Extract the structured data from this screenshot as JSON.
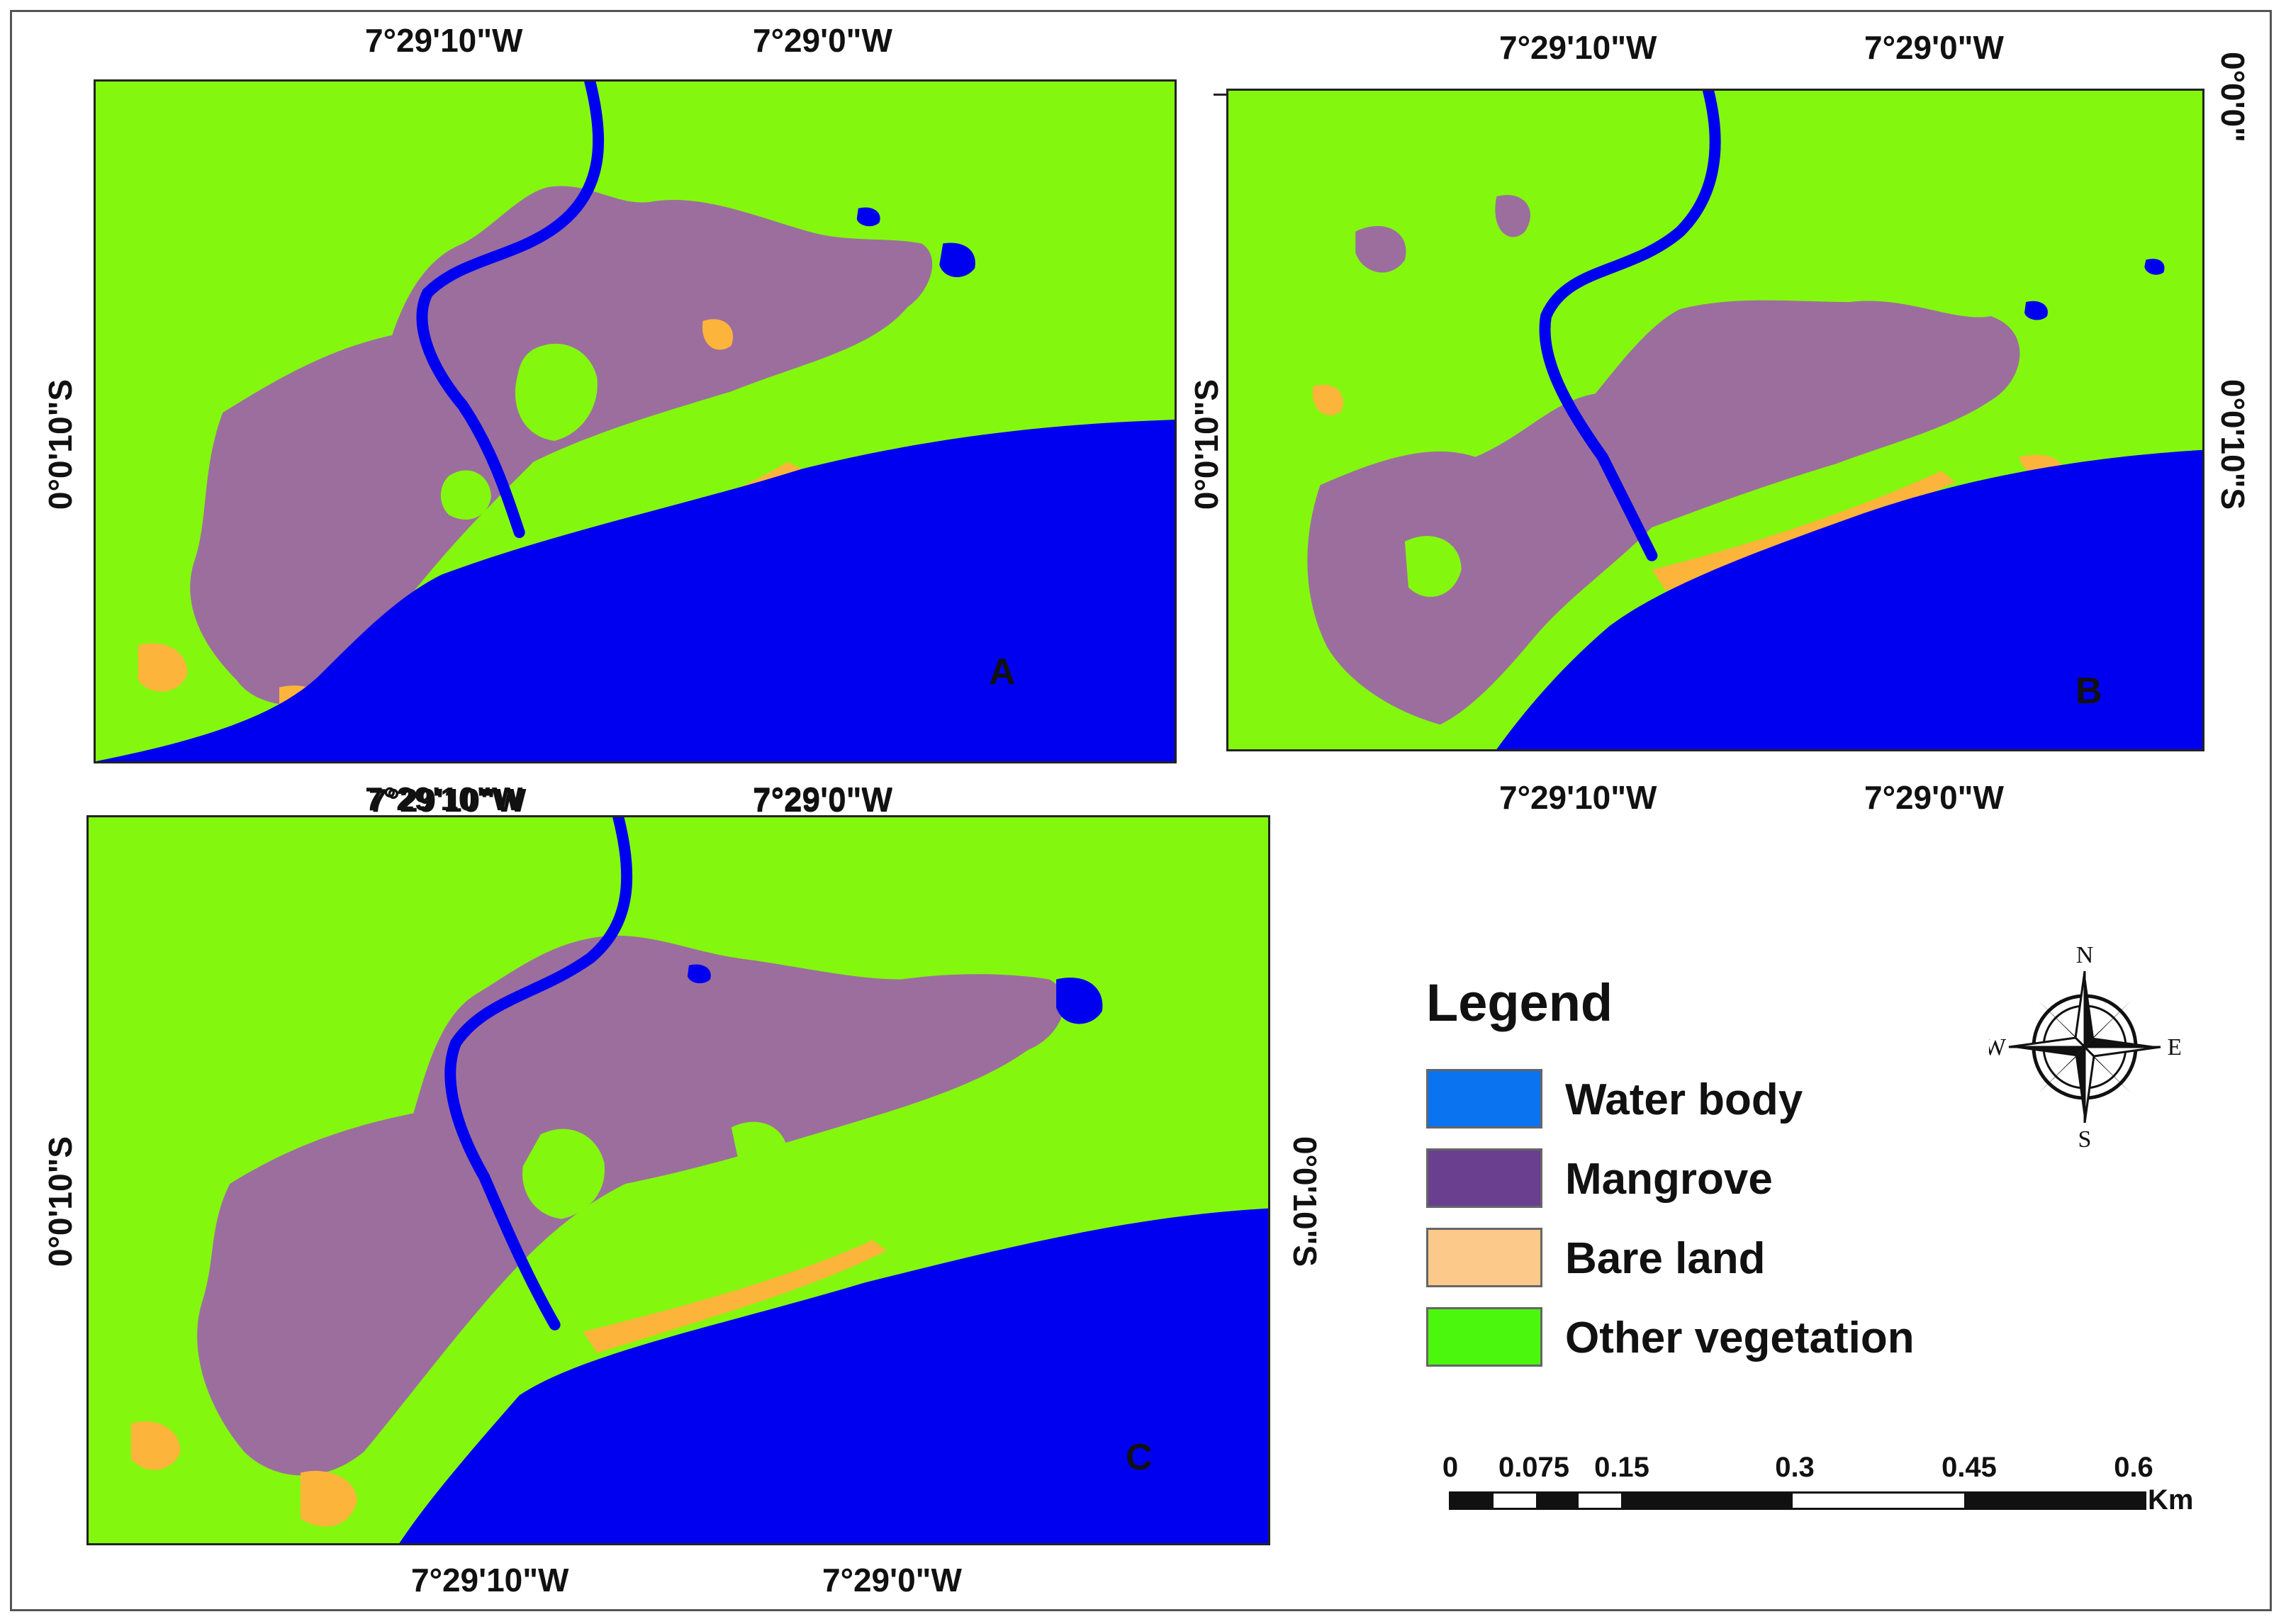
{
  "panels": [
    {
      "label": "A",
      "top_ticks": [
        "7°29'10\"W",
        "7°29'0\"W"
      ],
      "bottom_ticks": [
        "7°29'10\"W",
        "7°29'0\"W"
      ],
      "left_tick": "0°0'10\"S"
    },
    {
      "label": "B",
      "top_ticks": [
        "7°29'10\"W",
        "7°29'0\"W"
      ],
      "bottom_ticks": [
        "7°29'10\"W",
        "7°29'0\"W"
      ],
      "left_tick": "0°0'10\"S",
      "right_ticks": [
        "0°0'0\"",
        "0°0'10\"S"
      ]
    },
    {
      "label": "C",
      "top_ticks": [
        "7°29'10\"W",
        "7°29'0\"W"
      ],
      "bottom_ticks": [
        "7°29'10\"W",
        "7°29'0\"W"
      ],
      "left_tick": "0°0'10\"S",
      "right_tick": "0°0'10\"S"
    }
  ],
  "legend": {
    "title": "Legend",
    "items": [
      {
        "label": "Water body",
        "color": "#0a74f0"
      },
      {
        "label": "Mangrove",
        "color": "#6a3f8f"
      },
      {
        "label": "Bare land",
        "color": "#fdc98a"
      },
      {
        "label": "Other vegetation",
        "color": "#4cf70e"
      }
    ]
  },
  "map_colors": {
    "water": "#0000f0",
    "mangrove": "#9c6e9e",
    "bare": "#fcb53a",
    "vegetation": "#84f70e"
  },
  "compass": {
    "n": "N",
    "s": "S",
    "e": "E",
    "w": "W"
  },
  "scale": {
    "ticks": [
      "0",
      "0.075",
      "0.15",
      "0.3",
      "0.45",
      "0.6"
    ],
    "unit": "Km"
  }
}
